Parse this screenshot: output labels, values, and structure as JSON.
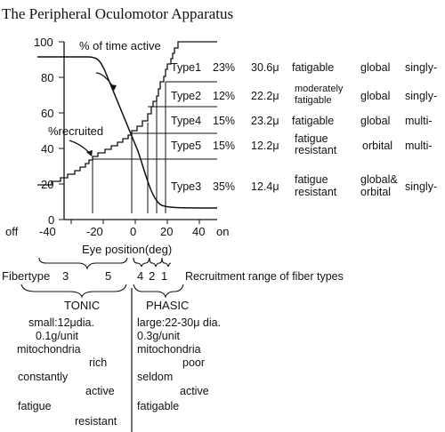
{
  "title": "The Peripheral Oculomotor Apparatus",
  "chart": {
    "y_ticks": [
      "100",
      "80",
      "60",
      "40",
      "20",
      "0"
    ],
    "x_ticks": [
      "-40",
      "-20",
      "0",
      "20",
      "40"
    ],
    "x_end_left": "off",
    "x_end_right": "on",
    "x_label": "Eye position(deg)",
    "curve_label_active": "% of time active",
    "curve_label_recruited": "%recruited"
  },
  "fiber_types": [
    {
      "type": "Type1",
      "percent": "23%",
      "diameter": "30.6μ",
      "fatigue": [
        "fatigable"
      ],
      "location": [
        "global"
      ],
      "innervation": "singly-"
    },
    {
      "type": "Type2",
      "percent": "12%",
      "diameter": "22.2μ",
      "fatigue": [
        "moderately",
        "fatigable"
      ],
      "location": [
        "global"
      ],
      "innervation": "singly-"
    },
    {
      "type": "Type4",
      "percent": "15%",
      "diameter": "23.2μ",
      "fatigue": [
        "fatigable"
      ],
      "location": [
        "global"
      ],
      "innervation": "multi-"
    },
    {
      "type": "Type5",
      "percent": "15%",
      "diameter": "12.2μ",
      "fatigue": [
        "fatigue",
        "resistant"
      ],
      "location": [
        "orbital"
      ],
      "innervation": "multi-"
    },
    {
      "type": "Type3",
      "percent": "35%",
      "diameter": "12.4μ",
      "fatigue": [
        "fatigue",
        "resistant"
      ],
      "location": [
        "global&",
        "orbital"
      ],
      "innervation": "singly-"
    }
  ],
  "recruitment": {
    "fibertype_label": "Fibertype",
    "left_numbers": [
      "3",
      "5"
    ],
    "right_numbers": [
      "4",
      "2",
      "1"
    ],
    "caption": "Recruitment range of fiber types"
  },
  "tonic": {
    "heading": "TONIC",
    "lines": [
      "small:12μdia.",
      "0.1g/unit",
      "mitochondria",
      "rich",
      "constantly",
      "active",
      "fatigue",
      "resistant"
    ]
  },
  "phasic": {
    "heading": "PHASIC",
    "lines": [
      "large:22-30μ dia.",
      "0.3g/unit",
      "mitochondria",
      "poor",
      "seldom",
      "active",
      "fatigable"
    ]
  }
}
